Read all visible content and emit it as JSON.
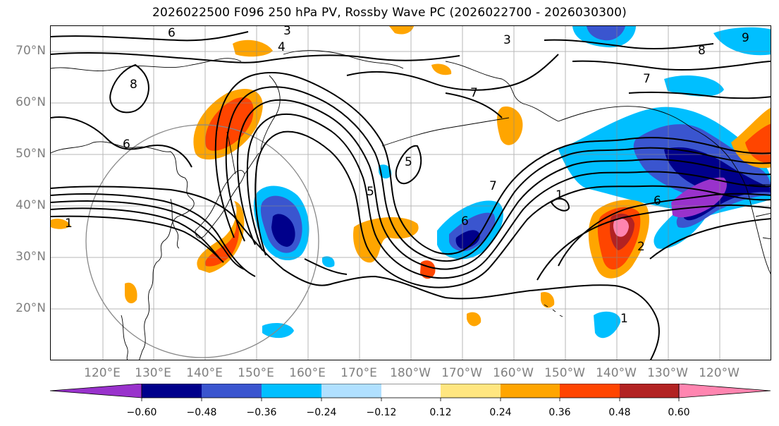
{
  "title": "2026022500 F096 250 hPa PV, Rossby Wave PC (2026022700 - 2026030300)",
  "lat_labels": [
    "70°N",
    "60°N",
    "50°N",
    "40°N",
    "30°N",
    "20°N"
  ],
  "lon_labels": [
    "120°E",
    "130°E",
    "140°E",
    "150°E",
    "160°E",
    "170°E",
    "180°W",
    "170°W",
    "160°W",
    "150°W",
    "140°W",
    "130°W",
    "120°W"
  ],
  "contour_labels": [
    "1",
    "2",
    "3",
    "4",
    "5",
    "6",
    "7",
    "8",
    "9"
  ],
  "colorbar": {
    "ticks": [
      "−0.60",
      "−0.48",
      "−0.36",
      "−0.24",
      "−0.12",
      "0.12",
      "0.24",
      "0.36",
      "0.48",
      "0.60"
    ],
    "colors": [
      "#9932cc",
      "#00008b",
      "#3a55cf",
      "#00bfff",
      "#b0e0ff",
      "#ffffff",
      "#ffe680",
      "#ffa500",
      "#ff4500",
      "#b22222",
      "#ff85b0"
    ]
  },
  "colors": {
    "neg_strong": "#00008b",
    "neg_mid": "#3a55cf",
    "neg_light": "#00bfff",
    "neg_pale": "#b0e0ff",
    "pos_pale": "#ffe680",
    "pos_light": "#ffa500",
    "pos_mid": "#ff4500",
    "pos_strong": "#b22222",
    "pos_max": "#ff85b0"
  }
}
